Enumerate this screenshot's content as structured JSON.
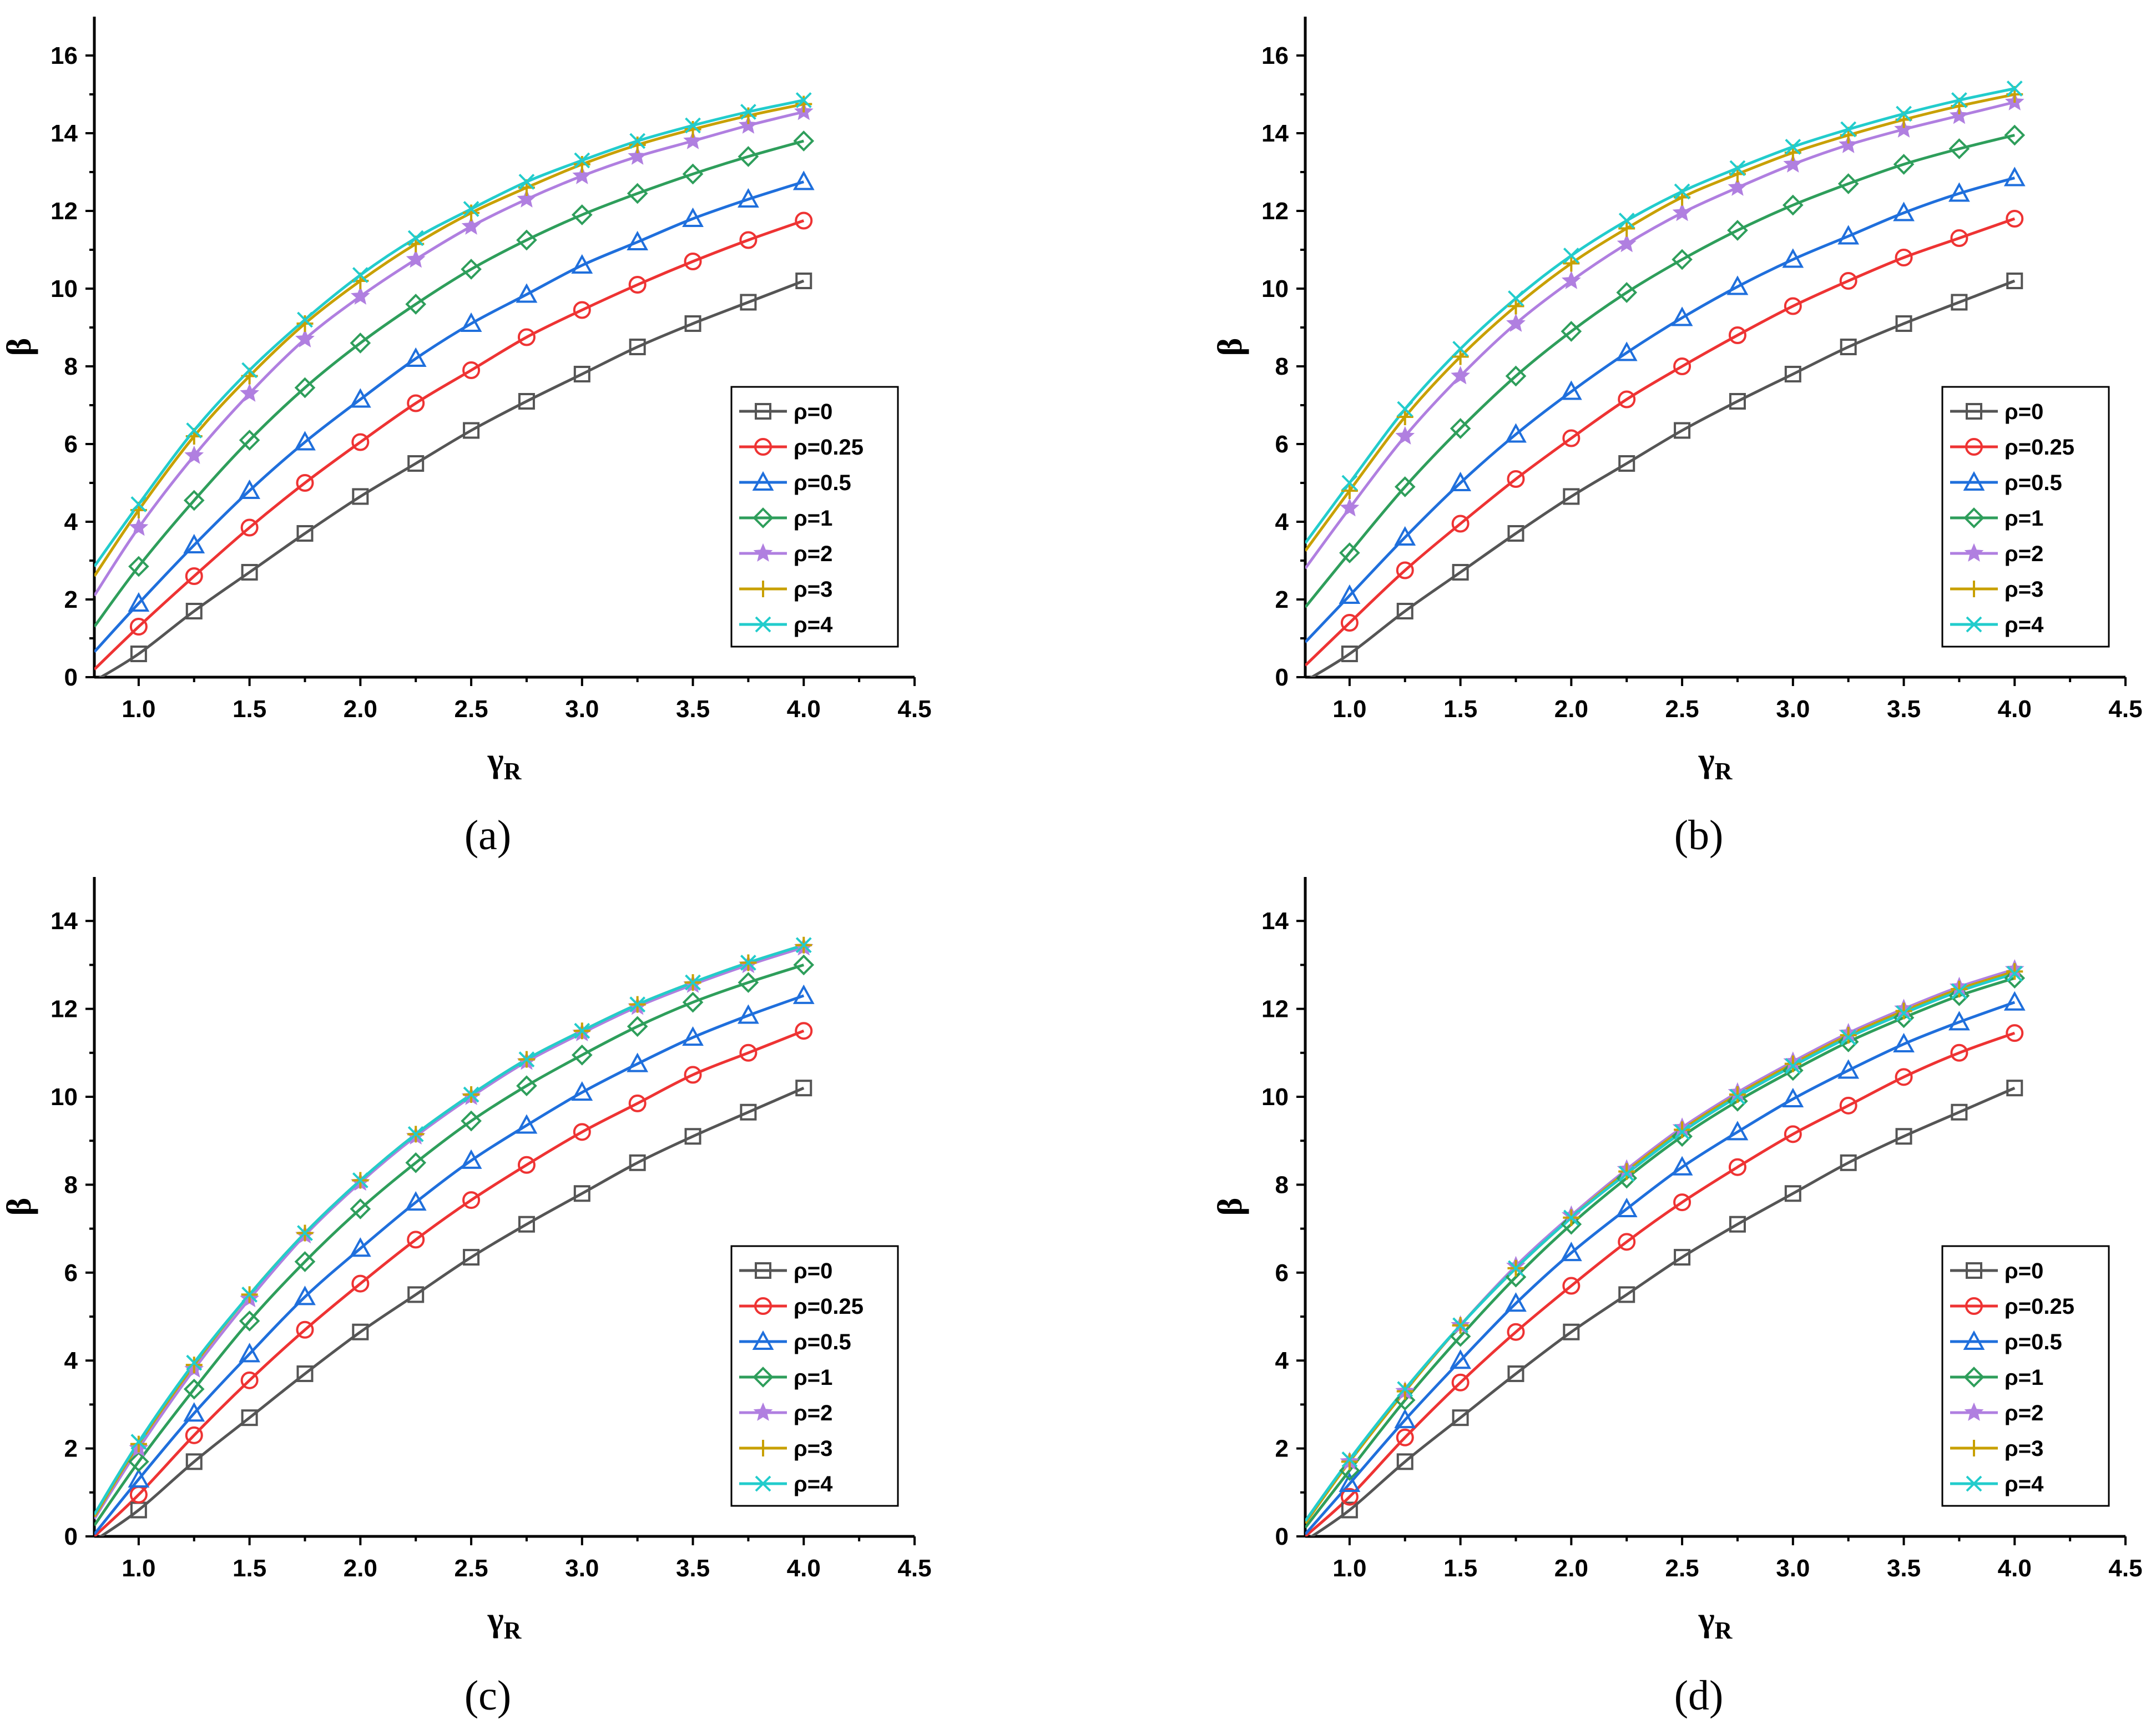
{
  "chart_data": [
    {
      "type": "line",
      "panel_label": "(a)",
      "xlabel": "γR",
      "ylabel": "β",
      "xlim": [
        0.8,
        4.5
      ],
      "ylim": [
        0,
        17
      ],
      "xticks": [
        "1.0",
        "1.5",
        "2.0",
        "2.5",
        "3.0",
        "3.5",
        "4.0",
        "4.5"
      ],
      "yticks": [
        "0",
        "2",
        "4",
        "6",
        "8",
        "10",
        "12",
        "14",
        "16"
      ],
      "legend_position": "bottom-right",
      "x": [
        1.0,
        1.25,
        1.5,
        1.75,
        2.0,
        2.25,
        2.5,
        2.75,
        3.0,
        3.25,
        3.5,
        3.75,
        4.0
      ],
      "series": [
        {
          "name": "ρ=0",
          "color": "#555555",
          "marker": "square",
          "y_start": -0.1,
          "values": [
            0.6,
            1.7,
            2.7,
            3.7,
            4.65,
            5.5,
            6.35,
            7.1,
            7.8,
            8.5,
            9.1,
            9.65,
            10.2
          ]
        },
        {
          "name": "ρ=0.25",
          "color": "#ee3333",
          "marker": "circle",
          "y_start": 0.2,
          "values": [
            1.3,
            2.6,
            3.85,
            5.0,
            6.05,
            7.05,
            7.9,
            8.75,
            9.45,
            10.1,
            10.7,
            11.25,
            11.75
          ]
        },
        {
          "name": "ρ=0.5",
          "color": "#1f6fdc",
          "marker": "triangle",
          "y_start": 0.65,
          "values": [
            1.9,
            3.4,
            4.8,
            6.05,
            7.15,
            8.2,
            9.1,
            9.85,
            10.6,
            11.2,
            11.8,
            12.3,
            12.75
          ]
        },
        {
          "name": "ρ=1",
          "color": "#2e9e5b",
          "marker": "diamond",
          "y_start": 1.3,
          "values": [
            2.85,
            4.55,
            6.1,
            7.45,
            8.6,
            9.6,
            10.5,
            11.25,
            11.9,
            12.45,
            12.95,
            13.4,
            13.8
          ]
        },
        {
          "name": "ρ=2",
          "color": "#b07fe0",
          "marker": "star",
          "y_start": 2.1,
          "values": [
            3.85,
            5.7,
            7.3,
            8.7,
            9.8,
            10.75,
            11.6,
            12.3,
            12.9,
            13.4,
            13.8,
            14.2,
            14.55
          ]
        },
        {
          "name": "ρ=3",
          "color": "#c8a000",
          "marker": "plus",
          "y_start": 2.6,
          "values": [
            4.3,
            6.2,
            7.75,
            9.1,
            10.2,
            11.15,
            11.95,
            12.6,
            13.2,
            13.7,
            14.1,
            14.45,
            14.75
          ]
        },
        {
          "name": "ρ=4",
          "color": "#22cccc",
          "marker": "x",
          "y_start": 2.85,
          "values": [
            4.45,
            6.35,
            7.9,
            9.2,
            10.35,
            11.3,
            12.05,
            12.75,
            13.3,
            13.8,
            14.2,
            14.55,
            14.85
          ]
        }
      ]
    },
    {
      "type": "line",
      "panel_label": "(b)",
      "xlabel": "γR",
      "ylabel": "β",
      "xlim": [
        0.8,
        4.5
      ],
      "ylim": [
        0,
        17
      ],
      "xticks": [
        "1.0",
        "1.5",
        "2.0",
        "2.5",
        "3.0",
        "3.5",
        "4.0",
        "4.5"
      ],
      "yticks": [
        "0",
        "2",
        "4",
        "6",
        "8",
        "10",
        "12",
        "14",
        "16"
      ],
      "legend_position": "bottom-right",
      "x": [
        1.0,
        1.25,
        1.5,
        1.75,
        2.0,
        2.25,
        2.5,
        2.75,
        3.0,
        3.25,
        3.5,
        3.75,
        4.0
      ],
      "series": [
        {
          "name": "ρ=0",
          "color": "#555555",
          "marker": "square",
          "y_start": -0.1,
          "values": [
            0.6,
            1.7,
            2.7,
            3.7,
            4.65,
            5.5,
            6.35,
            7.1,
            7.8,
            8.5,
            9.1,
            9.65,
            10.2
          ]
        },
        {
          "name": "ρ=0.25",
          "color": "#ee3333",
          "marker": "circle",
          "y_start": 0.3,
          "values": [
            1.4,
            2.75,
            3.95,
            5.1,
            6.15,
            7.15,
            8.0,
            8.8,
            9.55,
            10.2,
            10.8,
            11.3,
            11.8
          ]
        },
        {
          "name": "ρ=0.5",
          "color": "#1f6fdc",
          "marker": "triangle",
          "y_start": 0.9,
          "values": [
            2.1,
            3.6,
            5.0,
            6.25,
            7.35,
            8.35,
            9.25,
            10.05,
            10.75,
            11.35,
            11.95,
            12.45,
            12.85
          ]
        },
        {
          "name": "ρ=1",
          "color": "#2e9e5b",
          "marker": "diamond",
          "y_start": 1.8,
          "values": [
            3.2,
            4.9,
            6.4,
            7.75,
            8.9,
            9.9,
            10.75,
            11.5,
            12.15,
            12.7,
            13.2,
            13.6,
            13.95
          ]
        },
        {
          "name": "ρ=2",
          "color": "#b07fe0",
          "marker": "star",
          "y_start": 2.8,
          "values": [
            4.35,
            6.2,
            7.75,
            9.1,
            10.2,
            11.15,
            11.95,
            12.6,
            13.2,
            13.7,
            14.1,
            14.45,
            14.8
          ]
        },
        {
          "name": "ρ=3",
          "color": "#c8a000",
          "marker": "plus",
          "y_start": 3.25,
          "values": [
            4.8,
            6.7,
            8.25,
            9.55,
            10.65,
            11.55,
            12.35,
            12.95,
            13.5,
            13.95,
            14.35,
            14.7,
            15.0
          ]
        },
        {
          "name": "ρ=4",
          "color": "#22cccc",
          "marker": "x",
          "y_start": 3.45,
          "values": [
            5.0,
            6.9,
            8.45,
            9.75,
            10.85,
            11.75,
            12.5,
            13.1,
            13.65,
            14.1,
            14.5,
            14.85,
            15.15
          ]
        }
      ]
    },
    {
      "type": "line",
      "panel_label": "(c)",
      "xlabel": "γR",
      "ylabel": "β",
      "xlim": [
        0.8,
        4.5
      ],
      "ylim": [
        0,
        15
      ],
      "xticks": [
        "1.0",
        "1.5",
        "2.0",
        "2.5",
        "3.0",
        "3.5",
        "4.0",
        "4.5"
      ],
      "yticks": [
        "0",
        "2",
        "4",
        "6",
        "8",
        "10",
        "12",
        "14"
      ],
      "legend_position": "bottom-right",
      "x": [
        1.0,
        1.25,
        1.5,
        1.75,
        2.0,
        2.25,
        2.5,
        2.75,
        3.0,
        3.25,
        3.5,
        3.75,
        4.0
      ],
      "series": [
        {
          "name": "ρ=0",
          "color": "#555555",
          "marker": "square",
          "y_start": -0.1,
          "values": [
            0.6,
            1.7,
            2.7,
            3.7,
            4.65,
            5.5,
            6.35,
            7.1,
            7.8,
            8.5,
            9.1,
            9.65,
            10.2
          ]
        },
        {
          "name": "ρ=0.25",
          "color": "#ee3333",
          "marker": "circle",
          "y_start": 0.0,
          "values": [
            0.95,
            2.3,
            3.55,
            4.7,
            5.75,
            6.75,
            7.65,
            8.45,
            9.2,
            9.85,
            10.5,
            11.0,
            11.5
          ]
        },
        {
          "name": "ρ=0.5",
          "color": "#1f6fdc",
          "marker": "triangle",
          "y_start": 0.05,
          "values": [
            1.3,
            2.8,
            4.15,
            5.45,
            6.55,
            7.6,
            8.55,
            9.35,
            10.1,
            10.75,
            11.35,
            11.85,
            12.3
          ]
        },
        {
          "name": "ρ=1",
          "color": "#2e9e5b",
          "marker": "diamond",
          "y_start": 0.25,
          "values": [
            1.7,
            3.35,
            4.9,
            6.25,
            7.45,
            8.5,
            9.45,
            10.25,
            10.95,
            11.6,
            12.15,
            12.6,
            13.0
          ]
        },
        {
          "name": "ρ=2",
          "color": "#b07fe0",
          "marker": "star",
          "y_start": 0.4,
          "values": [
            2.0,
            3.8,
            5.4,
            6.85,
            8.05,
            9.1,
            10.0,
            10.8,
            11.45,
            12.05,
            12.55,
            13.0,
            13.4
          ]
        },
        {
          "name": "ρ=3",
          "color": "#c8a000",
          "marker": "plus",
          "y_start": 0.45,
          "values": [
            2.1,
            3.9,
            5.5,
            6.9,
            8.1,
            9.15,
            10.05,
            10.85,
            11.5,
            12.1,
            12.6,
            13.05,
            13.45
          ]
        },
        {
          "name": "ρ=4",
          "color": "#22cccc",
          "marker": "x",
          "y_start": 0.5,
          "values": [
            2.15,
            3.95,
            5.5,
            6.9,
            8.1,
            9.15,
            10.05,
            10.85,
            11.5,
            12.1,
            12.6,
            13.05,
            13.45
          ]
        }
      ]
    },
    {
      "type": "line",
      "panel_label": "(d)",
      "xlabel": "γR",
      "ylabel": "β",
      "xlim": [
        0.8,
        4.5
      ],
      "ylim": [
        0,
        15
      ],
      "xticks": [
        "1.0",
        "1.5",
        "2.0",
        "2.5",
        "3.0",
        "3.5",
        "4.0",
        "4.5"
      ],
      "yticks": [
        "0",
        "2",
        "4",
        "6",
        "8",
        "10",
        "12",
        "14"
      ],
      "legend_position": "bottom-right",
      "x": [
        1.0,
        1.25,
        1.5,
        1.75,
        2.0,
        2.25,
        2.5,
        2.75,
        3.0,
        3.25,
        3.5,
        3.75,
        4.0
      ],
      "series": [
        {
          "name": "ρ=0",
          "color": "#555555",
          "marker": "square",
          "y_start": -0.1,
          "values": [
            0.6,
            1.7,
            2.7,
            3.7,
            4.65,
            5.5,
            6.35,
            7.1,
            7.8,
            8.5,
            9.1,
            9.65,
            10.2
          ]
        },
        {
          "name": "ρ=0.25",
          "color": "#ee3333",
          "marker": "circle",
          "y_start": 0.0,
          "values": [
            0.9,
            2.25,
            3.5,
            4.65,
            5.7,
            6.7,
            7.6,
            8.4,
            9.15,
            9.8,
            10.45,
            11.0,
            11.45
          ]
        },
        {
          "name": "ρ=0.5",
          "color": "#1f6fdc",
          "marker": "triangle",
          "y_start": 0.05,
          "values": [
            1.2,
            2.65,
            4.0,
            5.3,
            6.45,
            7.45,
            8.4,
            9.2,
            9.95,
            10.6,
            11.2,
            11.7,
            12.15
          ]
        },
        {
          "name": "ρ=1",
          "color": "#2e9e5b",
          "marker": "diamond",
          "y_start": 0.2,
          "values": [
            1.5,
            3.1,
            4.55,
            5.9,
            7.1,
            8.15,
            9.1,
            9.9,
            10.6,
            11.25,
            11.8,
            12.3,
            12.7
          ]
        },
        {
          "name": "ρ=2",
          "color": "#b07fe0",
          "marker": "star",
          "y_start": 0.3,
          "values": [
            1.7,
            3.3,
            4.8,
            6.15,
            7.3,
            8.35,
            9.3,
            10.1,
            10.8,
            11.45,
            12.0,
            12.5,
            12.9
          ]
        },
        {
          "name": "ρ=3",
          "color": "#c8a000",
          "marker": "plus",
          "y_start": 0.3,
          "values": [
            1.7,
            3.3,
            4.8,
            6.1,
            7.25,
            8.3,
            9.25,
            10.05,
            10.75,
            11.4,
            11.95,
            12.45,
            12.85
          ]
        },
        {
          "name": "ρ=4",
          "color": "#22cccc",
          "marker": "x",
          "y_start": 0.35,
          "values": [
            1.75,
            3.35,
            4.8,
            6.1,
            7.25,
            8.25,
            9.2,
            10.0,
            10.7,
            11.35,
            11.9,
            12.4,
            12.8
          ]
        }
      ]
    }
  ]
}
